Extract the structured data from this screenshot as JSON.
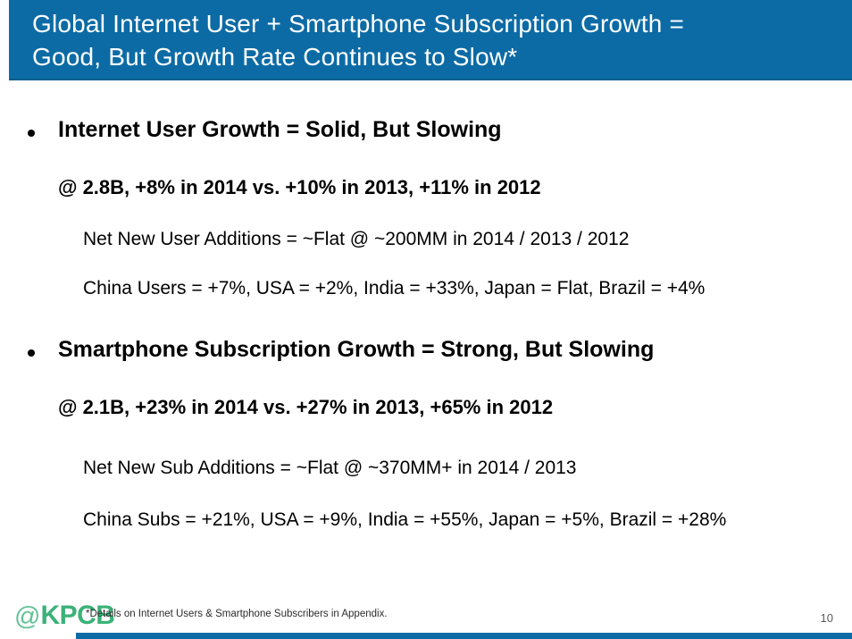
{
  "header": {
    "title_line1": "Global Internet User + Smartphone Subscription Growth =",
    "title_line2": "Good, But Growth Rate Continues to Slow*"
  },
  "sections": [
    {
      "heading": "Internet User Growth = Solid, But Slowing",
      "stat_line": "@ 2.8B, +8% in 2014 vs. +10% in 2013, +11% in 2012",
      "detail_lines": [
        "Net New User Additions = ~Flat @ ~200MM in 2014 / 2013 / 2012",
        "China Users = +7%, USA = +2%, India = +33%, Japan = Flat, Brazil = +4%"
      ]
    },
    {
      "heading": "Smartphone Subscription Growth = Strong, But Slowing",
      "stat_line": "@ 2.1B, +23% in 2014 vs. +27% in 2013, +65% in 2012",
      "detail_lines": [
        "Net New Sub Additions = ~Flat @ ~370MM+ in 2014 / 2013",
        "China Subs = +21%, USA = +9%, India = +55%, Japan = +5%, Brazil = +28%"
      ]
    }
  ],
  "footer": {
    "logo_at": "@",
    "logo_name": "KPCB",
    "footnote": "*Details on Internet Users & Smartphone Subscribers in Appendix.",
    "page_number": "10"
  },
  "colors": {
    "banner_blue": "#0C6BA5",
    "footer_bar_blue": "#0C6BA5",
    "logo_green": "#3BB277",
    "logo_at_green": "#62C295",
    "body_text": "#000000",
    "page_number_gray": "#595959"
  }
}
